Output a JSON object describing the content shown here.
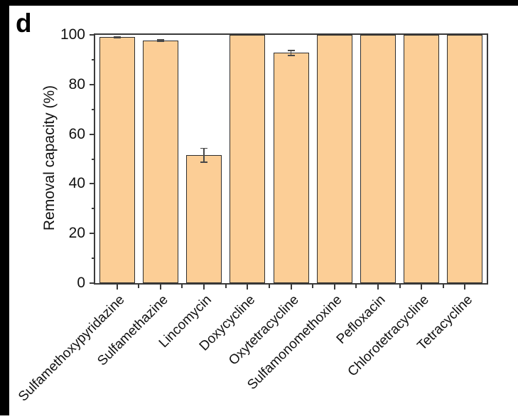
{
  "panel_label": "d",
  "colors": {
    "frame": "#000000",
    "bar_fill": "#FCCE96",
    "bar_border": "#2e2e2e",
    "axis": "#3a3a3a",
    "error_bar": "#474747",
    "text": "#111111",
    "background": "#ffffff"
  },
  "chart_data": {
    "type": "bar",
    "title": "",
    "xlabel": "",
    "ylabel": "Removal capacity (%)",
    "ylim": [
      0,
      100
    ],
    "yticks": [
      0,
      20,
      40,
      60,
      80,
      100
    ],
    "yticks_minor": [
      10,
      30,
      50,
      70,
      90
    ],
    "grid": false,
    "legend_position": "none",
    "categories": [
      "Sulfamethoxypyridazine",
      "Sulfamethazine",
      "Lincomycin",
      "Doxycycline",
      "Oxytetracycline",
      "Sulfamonomethoxine",
      "Pefloxacin",
      "Chlorotetracycline",
      "Tetracycline"
    ],
    "values": [
      99.0,
      97.7,
      51.5,
      100,
      92.7,
      100,
      100,
      100,
      100
    ],
    "errors": [
      0.4,
      0.5,
      3.0,
      0,
      1.2,
      0,
      0,
      0,
      0
    ]
  }
}
